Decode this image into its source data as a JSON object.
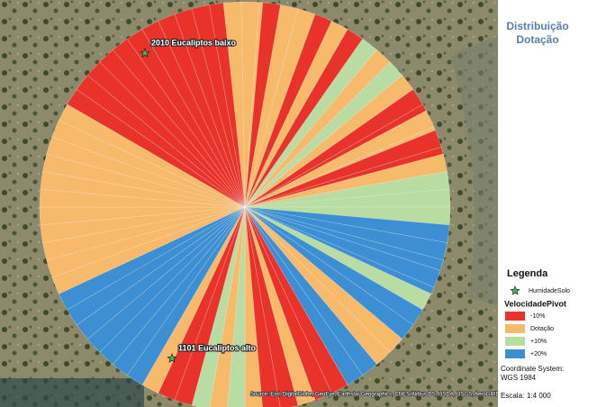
{
  "title": [
    "Distribuição",
    "Dotação"
  ],
  "map_labels": [
    "2010 Eucaliptos baixo",
    "1101 Eucaliptos alto"
  ],
  "attribution": "Source: Esri, DigitalGlobe, GeoEye, Earthstar Geographics, CNES/Airbus DS, USDA, USGS, AeroGRID, IGN, and the GIS User Community",
  "legend": {
    "title": "Legenda",
    "point_layer": "HumidadeSolo",
    "class_layer": "VelocidadePivot",
    "classes": [
      {
        "label": "-10%",
        "color": "#e8322a"
      },
      {
        "label": "Dotação",
        "color": "#f7b96a"
      },
      {
        "label": "+10%",
        "color": "#b8dca2"
      },
      {
        "label": "+20%",
        "color": "#3b8fd2"
      }
    ]
  },
  "coordinate_system": [
    "Coordinate System:",
    "WGS 1984"
  ],
  "scale": {
    "label": "Escala:",
    "value": "1:4 000"
  }
}
